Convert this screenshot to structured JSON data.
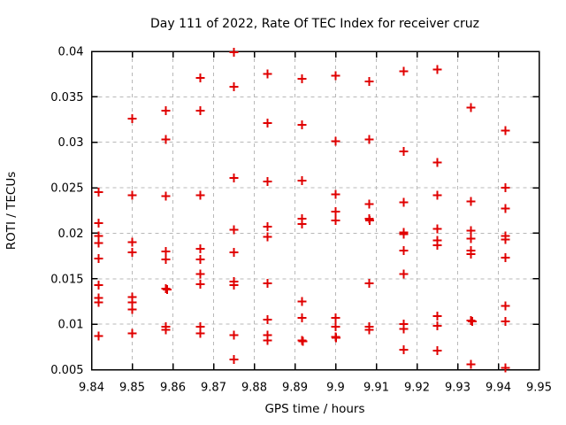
{
  "chart_data": {
    "type": "scatter",
    "title": "Day 111 of 2022, Rate Of TEC Index for receiver cruz",
    "xlabel": "GPS time / hours",
    "ylabel": "ROTI / TECUs",
    "xlim": [
      9.84,
      9.95
    ],
    "ylim": [
      0.005,
      0.04
    ],
    "grid": true,
    "legend": "none",
    "xticks": [
      {
        "v": 9.84,
        "label": "9.84"
      },
      {
        "v": 9.85,
        "label": "9.85"
      },
      {
        "v": 9.86,
        "label": "9.86"
      },
      {
        "v": 9.87,
        "label": "9.87"
      },
      {
        "v": 9.88,
        "label": "9.88"
      },
      {
        "v": 9.89,
        "label": "9.89"
      },
      {
        "v": 9.9,
        "label": "9.9"
      },
      {
        "v": 9.91,
        "label": "9.91"
      },
      {
        "v": 9.92,
        "label": "9.92"
      },
      {
        "v": 9.93,
        "label": "9.93"
      },
      {
        "v": 9.94,
        "label": "9.94"
      },
      {
        "v": 9.95,
        "label": "9.95"
      }
    ],
    "yticks": [
      {
        "v": 0.005,
        "label": "0.005"
      },
      {
        "v": 0.01,
        "label": "0.01"
      },
      {
        "v": 0.015,
        "label": "0.015"
      },
      {
        "v": 0.02,
        "label": "0.02"
      },
      {
        "v": 0.025,
        "label": "0.025"
      },
      {
        "v": 0.03,
        "label": "0.03"
      },
      {
        "v": 0.035,
        "label": "0.035"
      },
      {
        "v": 0.04,
        "label": "0.04"
      }
    ],
    "marker": {
      "shape": "plus",
      "color": "#e00000",
      "size": 11,
      "stroke_width": 2
    },
    "series": [
      {
        "name": "ROTI",
        "points": [
          [
            9.8417,
            0.0245
          ],
          [
            9.8417,
            0.0211
          ],
          [
            9.8417,
            0.0197
          ],
          [
            9.8417,
            0.0189
          ],
          [
            9.8417,
            0.0172
          ],
          [
            9.8417,
            0.0143
          ],
          [
            9.8417,
            0.0129
          ],
          [
            9.8417,
            0.0124
          ],
          [
            9.8417,
            0.0087
          ],
          [
            9.85,
            0.0326
          ],
          [
            9.85,
            0.0242
          ],
          [
            9.85,
            0.019
          ],
          [
            9.85,
            0.0179
          ],
          [
            9.85,
            0.013
          ],
          [
            9.85,
            0.0124
          ],
          [
            9.85,
            0.0116
          ],
          [
            9.85,
            0.009
          ],
          [
            9.8583,
            0.0335
          ],
          [
            9.8583,
            0.0303
          ],
          [
            9.8583,
            0.0241
          ],
          [
            9.8583,
            0.018
          ],
          [
            9.8583,
            0.0171
          ],
          [
            9.8583,
            0.0139
          ],
          [
            9.8586,
            0.0138
          ],
          [
            9.8583,
            0.0097
          ],
          [
            9.8583,
            0.0094
          ],
          [
            9.8667,
            0.0371
          ],
          [
            9.8667,
            0.0335
          ],
          [
            9.8667,
            0.0242
          ],
          [
            9.8667,
            0.0183
          ],
          [
            9.8667,
            0.0171
          ],
          [
            9.8667,
            0.0155
          ],
          [
            9.8667,
            0.0144
          ],
          [
            9.8667,
            0.0097
          ],
          [
            9.8667,
            0.009
          ],
          [
            9.875,
            0.0399
          ],
          [
            9.875,
            0.0361
          ],
          [
            9.875,
            0.0261
          ],
          [
            9.875,
            0.0204
          ],
          [
            9.875,
            0.0179
          ],
          [
            9.875,
            0.0147
          ],
          [
            9.875,
            0.0143
          ],
          [
            9.875,
            0.0088
          ],
          [
            9.875,
            0.0061
          ],
          [
            9.8833,
            0.0375
          ],
          [
            9.8833,
            0.0321
          ],
          [
            9.8833,
            0.0257
          ],
          [
            9.8833,
            0.0207
          ],
          [
            9.8833,
            0.0196
          ],
          [
            9.8833,
            0.0145
          ],
          [
            9.8833,
            0.0105
          ],
          [
            9.8833,
            0.0088
          ],
          [
            9.8833,
            0.0082
          ],
          [
            9.8917,
            0.037
          ],
          [
            9.8917,
            0.0319
          ],
          [
            9.8917,
            0.0258
          ],
          [
            9.8917,
            0.0216
          ],
          [
            9.8917,
            0.021
          ],
          [
            9.8917,
            0.0125
          ],
          [
            9.8917,
            0.0107
          ],
          [
            9.8917,
            0.0082
          ],
          [
            9.892,
            0.0081
          ],
          [
            9.9,
            0.0373
          ],
          [
            9.9,
            0.0301
          ],
          [
            9.9,
            0.0243
          ],
          [
            9.9,
            0.0224
          ],
          [
            9.9,
            0.0214
          ],
          [
            9.9,
            0.0107
          ],
          [
            9.9,
            0.0097
          ],
          [
            9.9,
            0.0086
          ],
          [
            9.9001,
            0.0085
          ],
          [
            9.9083,
            0.0367
          ],
          [
            9.9083,
            0.0303
          ],
          [
            9.9083,
            0.0232
          ],
          [
            9.9083,
            0.0216
          ],
          [
            9.9084,
            0.0214
          ],
          [
            9.9083,
            0.0145
          ],
          [
            9.9083,
            0.0097
          ],
          [
            9.9083,
            0.0094
          ],
          [
            9.9167,
            0.0378
          ],
          [
            9.9167,
            0.029
          ],
          [
            9.9167,
            0.0234
          ],
          [
            9.9167,
            0.0201
          ],
          [
            9.9167,
            0.0199
          ],
          [
            9.9167,
            0.0181
          ],
          [
            9.9167,
            0.0155
          ],
          [
            9.9167,
            0.01
          ],
          [
            9.9167,
            0.0095
          ],
          [
            9.9167,
            0.0072
          ],
          [
            9.925,
            0.038
          ],
          [
            9.925,
            0.0278
          ],
          [
            9.925,
            0.0242
          ],
          [
            9.925,
            0.0205
          ],
          [
            9.925,
            0.0192
          ],
          [
            9.925,
            0.0187
          ],
          [
            9.925,
            0.0109
          ],
          [
            9.925,
            0.0098
          ],
          [
            9.925,
            0.0071
          ],
          [
            9.9333,
            0.0338
          ],
          [
            9.9333,
            0.0235
          ],
          [
            9.9333,
            0.0203
          ],
          [
            9.9333,
            0.0194
          ],
          [
            9.9333,
            0.0181
          ],
          [
            9.9333,
            0.0177
          ],
          [
            9.9333,
            0.0104
          ],
          [
            9.9336,
            0.0103
          ],
          [
            9.9333,
            0.0056
          ],
          [
            9.9417,
            0.0313
          ],
          [
            9.9417,
            0.025
          ],
          [
            9.9417,
            0.0227
          ],
          [
            9.9417,
            0.0197
          ],
          [
            9.9417,
            0.0193
          ],
          [
            9.9417,
            0.0173
          ],
          [
            9.9417,
            0.012
          ],
          [
            9.9417,
            0.0103
          ],
          [
            9.9417,
            0.0052
          ]
        ]
      }
    ]
  },
  "colors": {
    "background": "#ffffff",
    "plot_border": "#000000",
    "grid": "#b8b8b8",
    "text": "#000000",
    "marker": "#e00000"
  }
}
